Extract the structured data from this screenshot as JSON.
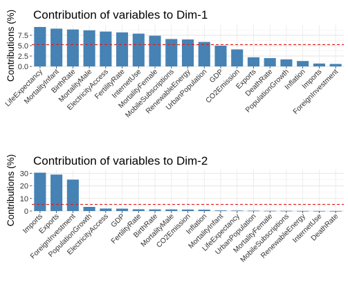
{
  "chart_data": [
    {
      "type": "bar",
      "title": "Contribution of variables to Dim-1",
      "xlabel": "",
      "ylabel": "Contributions (%)",
      "ylim": [
        0,
        10
      ],
      "yticks": [
        0.0,
        2.5,
        5.0,
        7.5
      ],
      "ytick_labels": [
        "0.0",
        "2.5",
        "5.0",
        "7.5"
      ],
      "grid": true,
      "bar_color": "#4682B4",
      "reference_line": {
        "value": 5.26,
        "color": "#E41A1C",
        "style": "dashed"
      },
      "categories": [
        "LifeExpectancy",
        "MortalityInfant",
        "BirthRate",
        "MortalityMale",
        "ElectricityAccess",
        "FertilityRate",
        "InternetUse",
        "MortalityFemale",
        "MobileSubscriptions",
        "RenewableEnergy",
        "UrbanPopulation",
        "GDP",
        "CO2Emission",
        "Exports",
        "DeathRate",
        "PopulationGrowth",
        "Inflation",
        "Imports",
        "ForeignInvestment"
      ],
      "values": [
        9.5,
        9.1,
        8.9,
        8.7,
        8.4,
        8.2,
        7.9,
        7.4,
        6.6,
        6.5,
        5.9,
        5.0,
        4.1,
        2.2,
        2.0,
        1.7,
        1.3,
        0.7,
        0.6
      ]
    },
    {
      "type": "bar",
      "title": "Contribution of variables to Dim-2",
      "xlabel": "",
      "ylabel": "Contributions (%)",
      "ylim": [
        0,
        33
      ],
      "yticks": [
        0,
        10,
        20,
        30
      ],
      "ytick_labels": [
        "0",
        "10",
        "20",
        "30"
      ],
      "grid": true,
      "bar_color": "#4682B4",
      "reference_line": {
        "value": 5.26,
        "color": "#E41A1C",
        "style": "dashed"
      },
      "categories": [
        "Imports",
        "Exports",
        "ForeignInvestment",
        "PopulationGrowth",
        "ElectricityAccess",
        "GDP",
        "FertilityRate",
        "BirthRate",
        "MortalityMale",
        "CO2Emission",
        "Inflation",
        "MortalityInfant",
        "LifeExpectancy",
        "UrbanPopulation",
        "MortalityFemale",
        "MobileSubscriptions",
        "RenewableEnergy",
        "InternetUse",
        "DeathRate"
      ],
      "values": [
        30.5,
        29.0,
        25.0,
        3.3,
        2.0,
        1.9,
        1.4,
        1.3,
        1.3,
        1.2,
        1.1,
        0.5,
        0.4,
        0.3,
        0.2,
        0.2,
        0.1,
        0.1,
        0.05
      ]
    }
  ]
}
